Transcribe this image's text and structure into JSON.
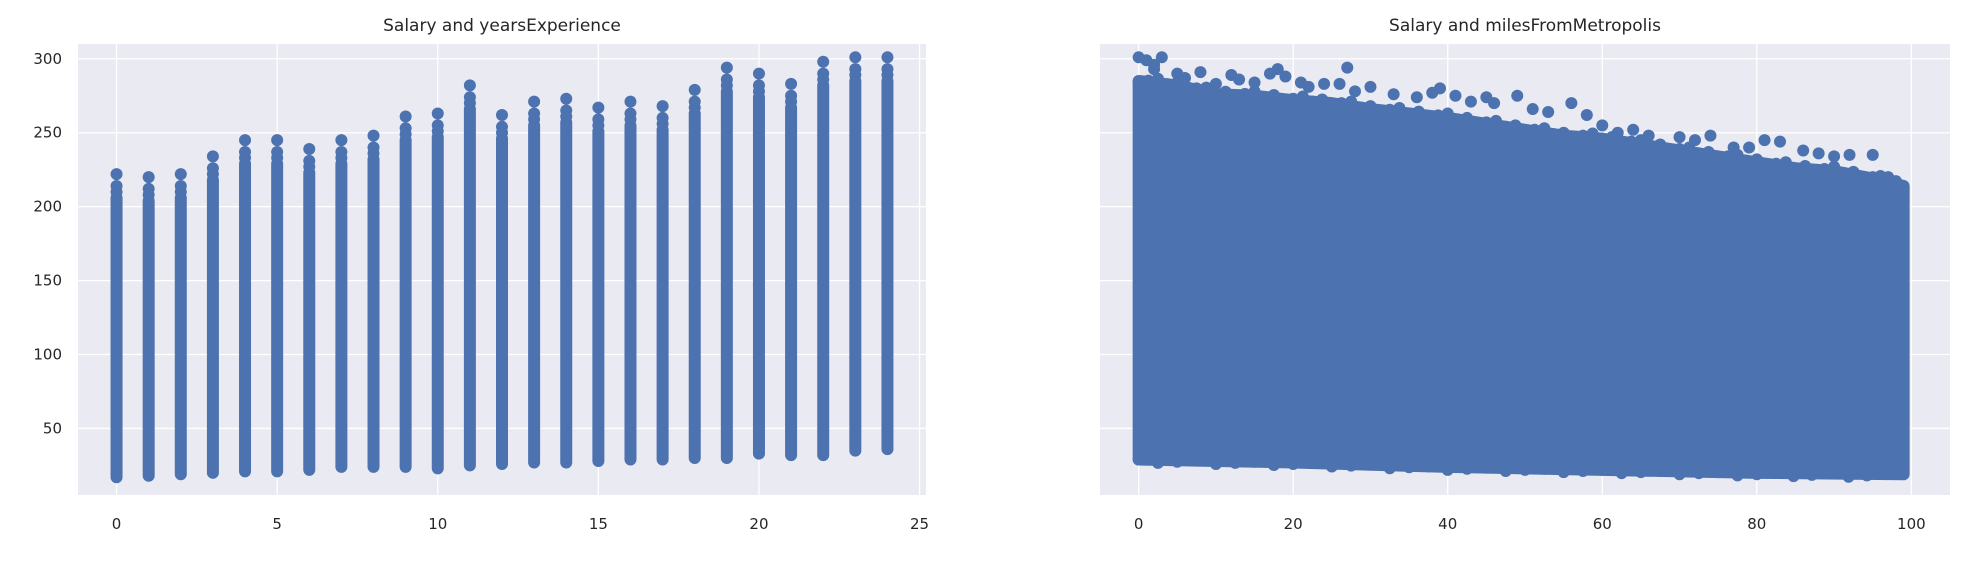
{
  "chart_data": [
    {
      "type": "scatter",
      "title": "Salary and yearsExperience",
      "xlabel": "",
      "ylabel": "",
      "xlim": [
        -1.2,
        25.2
      ],
      "ylim": [
        5,
        310
      ],
      "xticks": [
        0,
        5,
        10,
        15,
        20,
        25
      ],
      "yticks": [
        50,
        100,
        150,
        200,
        250,
        300
      ],
      "grid": true,
      "color": "#4c72b0",
      "x": [
        0,
        1,
        2,
        3,
        4,
        5,
        6,
        7,
        8,
        9,
        10,
        11,
        12,
        13,
        14,
        15,
        16,
        17,
        18,
        19,
        20,
        21,
        22,
        23,
        24
      ],
      "y_min": [
        17,
        18,
        19,
        20,
        21,
        21,
        22,
        24,
        24,
        24,
        23,
        25,
        26,
        27,
        27,
        28,
        29,
        29,
        30,
        30,
        33,
        32,
        32,
        35,
        36
      ],
      "y_max": [
        222,
        220,
        222,
        234,
        245,
        245,
        239,
        245,
        248,
        261,
        263,
        282,
        262,
        271,
        273,
        267,
        271,
        268,
        279,
        294,
        290,
        283,
        298,
        301,
        301
      ],
      "max_points": [
        [
          0,
          222
        ],
        [
          1,
          220
        ],
        [
          2,
          222
        ],
        [
          3,
          234
        ],
        [
          4,
          245
        ],
        [
          5,
          245
        ],
        [
          6,
          239
        ],
        [
          7,
          245
        ],
        [
          8,
          248
        ],
        [
          9,
          261
        ],
        [
          10,
          263
        ],
        [
          11,
          282
        ],
        [
          12,
          262
        ],
        [
          13,
          271
        ],
        [
          14,
          273
        ],
        [
          15,
          267
        ],
        [
          16,
          271
        ],
        [
          17,
          268
        ],
        [
          18,
          279
        ],
        [
          19,
          294
        ],
        [
          20,
          290
        ],
        [
          21,
          283
        ],
        [
          22,
          298
        ],
        [
          23,
          301
        ],
        [
          24,
          301
        ]
      ]
    },
    {
      "type": "scatter",
      "title": "Salary and milesFromMetropolis",
      "xlabel": "",
      "ylabel": "",
      "xlim": [
        -5,
        105
      ],
      "ylim": [
        5,
        310
      ],
      "xticks": [
        0,
        20,
        40,
        60,
        80,
        100
      ],
      "yticks": [
        50,
        100,
        150,
        200,
        250,
        300
      ],
      "grid": true,
      "color": "#4c72b0",
      "x_range": [
        0,
        99
      ],
      "upper_envelope": [
        [
          0,
          285
        ],
        [
          5,
          282
        ],
        [
          10,
          276
        ],
        [
          15,
          275
        ],
        [
          20,
          272
        ],
        [
          25,
          270
        ],
        [
          30,
          266
        ],
        [
          35,
          263
        ],
        [
          40,
          260
        ],
        [
          45,
          256
        ],
        [
          50,
          252
        ],
        [
          55,
          248
        ],
        [
          60,
          246
        ],
        [
          65,
          242
        ],
        [
          70,
          238
        ],
        [
          75,
          234
        ],
        [
          80,
          230
        ],
        [
          85,
          226
        ],
        [
          90,
          224
        ],
        [
          95,
          219
        ],
        [
          99,
          214
        ]
      ],
      "lower_envelope": [
        [
          0,
          29
        ],
        [
          20,
          27
        ],
        [
          40,
          24
        ],
        [
          60,
          22
        ],
        [
          80,
          20
        ],
        [
          99,
          19
        ]
      ],
      "outliers": [
        [
          0,
          301
        ],
        [
          1,
          299
        ],
        [
          2,
          296
        ],
        [
          3,
          301
        ],
        [
          2,
          293
        ],
        [
          5,
          290
        ],
        [
          6,
          287
        ],
        [
          8,
          291
        ],
        [
          10,
          283
        ],
        [
          12,
          289
        ],
        [
          13,
          286
        ],
        [
          15,
          284
        ],
        [
          17,
          290
        ],
        [
          18,
          293
        ],
        [
          19,
          288
        ],
        [
          21,
          284
        ],
        [
          22,
          281
        ],
        [
          24,
          283
        ],
        [
          26,
          283
        ],
        [
          27,
          294
        ],
        [
          28,
          278
        ],
        [
          30,
          281
        ],
        [
          33,
          276
        ],
        [
          36,
          274
        ],
        [
          38,
          277
        ],
        [
          39,
          280
        ],
        [
          41,
          275
        ],
        [
          43,
          271
        ],
        [
          45,
          274
        ],
        [
          46,
          270
        ],
        [
          49,
          275
        ],
        [
          51,
          266
        ],
        [
          53,
          264
        ],
        [
          56,
          270
        ],
        [
          58,
          262
        ],
        [
          60,
          255
        ],
        [
          62,
          250
        ],
        [
          64,
          252
        ],
        [
          66,
          248
        ],
        [
          70,
          247
        ],
        [
          72,
          245
        ],
        [
          74,
          248
        ],
        [
          77,
          240
        ],
        [
          79,
          240
        ],
        [
          81,
          245
        ],
        [
          83,
          244
        ],
        [
          86,
          238
        ],
        [
          88,
          236
        ],
        [
          90,
          234
        ],
        [
          92,
          235
        ],
        [
          95,
          235
        ],
        [
          97,
          220
        ]
      ]
    }
  ]
}
